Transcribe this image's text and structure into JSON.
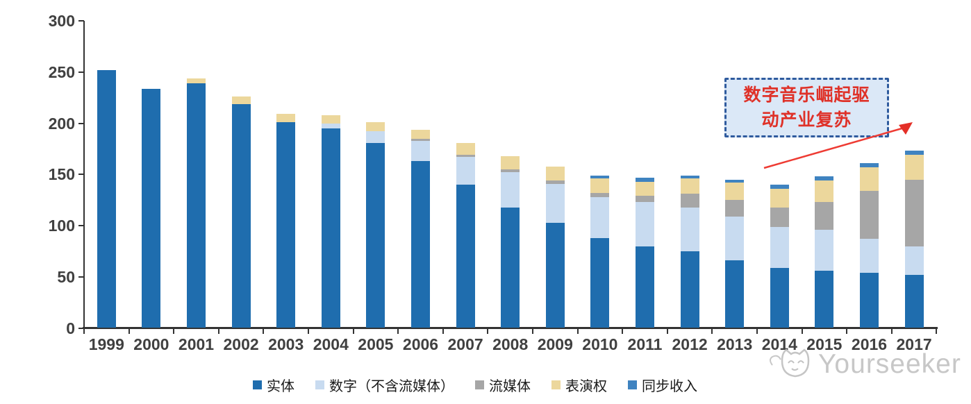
{
  "chart_data": {
    "type": "bar",
    "variant": "stacked-vertical",
    "title": "",
    "xlabel": "",
    "ylabel": "",
    "ylim": [
      0,
      300
    ],
    "y_ticks": [
      0,
      50,
      100,
      150,
      200,
      250,
      300
    ],
    "grid": false,
    "legend_position": "bottom",
    "categories": [
      "1999",
      "2000",
      "2001",
      "2002",
      "2003",
      "2004",
      "2005",
      "2006",
      "2007",
      "2008",
      "2009",
      "2010",
      "2011",
      "2012",
      "2013",
      "2014",
      "2015",
      "2016",
      "2017"
    ],
    "series": [
      {
        "name": "实体",
        "color": "#1f6dae",
        "values": [
          252,
          234,
          239,
          219,
          201,
          195,
          181,
          163,
          140,
          118,
          103,
          88,
          80,
          75,
          66,
          59,
          56,
          54,
          52
        ]
      },
      {
        "name": "数字（不含流媒体）",
        "color": "#c8dbf0",
        "values": [
          0,
          0,
          0,
          0,
          0,
          5,
          11,
          20,
          27,
          34,
          38,
          40,
          43,
          43,
          43,
          40,
          40,
          33,
          28
        ]
      },
      {
        "name": "流媒体",
        "color": "#a6a6a6",
        "values": [
          0,
          0,
          0,
          0,
          0,
          0,
          0,
          2,
          2,
          3,
          3,
          4,
          6,
          13,
          16,
          19,
          27,
          47,
          65
        ]
      },
      {
        "name": "表演权",
        "color": "#ecd79c",
        "values": [
          0,
          0,
          5,
          7,
          8,
          8,
          9,
          9,
          12,
          13,
          14,
          14,
          14,
          15,
          17,
          18,
          21,
          23,
          24
        ]
      },
      {
        "name": "同步收入",
        "color": "#3f83c0",
        "values": [
          0,
          0,
          0,
          0,
          0,
          0,
          0,
          0,
          0,
          0,
          0,
          3,
          4,
          3,
          3,
          4,
          4,
          4,
          4
        ]
      }
    ]
  },
  "annotation": {
    "line1": "数字音乐崛起驱",
    "line2": "动产业复苏",
    "box_fill": "#dbe8f7",
    "border_color": "#2f5b9e",
    "text_color": "#df3128",
    "arrow_color": "#ee3b33"
  },
  "watermark": {
    "text": "Yourseeker",
    "color": "#c7c7c7",
    "icon": "cat-logo"
  }
}
